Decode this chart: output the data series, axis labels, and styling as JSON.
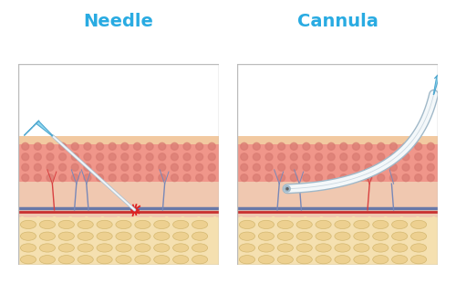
{
  "title_needle": "Needle",
  "title_cannula": "Cannula",
  "title_color": "#29ABE2",
  "title_fontsize": 14,
  "bg_color": "#FFFFFF",
  "panel_border": "#BBBBBB",
  "epidermis_color": "#F2C9A0",
  "dermis_color": "#F0968A",
  "dermis_dot_color": "#D97B72",
  "subdermis_color": "#F0C8B0",
  "fat_color": "#F5E0B0",
  "fat_cell_color": "#EDD090",
  "fat_cell_edge": "#D4B870",
  "needle_white": "#F0F4F8",
  "needle_outline": "#A8C0D0",
  "cannula_white": "#F4F8FA",
  "cannula_outline": "#A0B8C8",
  "syringe_light": "#90D8F0",
  "syringe_dark": "#50A8D0",
  "syringe_white": "#E0F4FC",
  "blood_vessel_blue": "#6878A8",
  "blood_vessel_red": "#C83030",
  "capillary_blue": "#7888B8",
  "capillary_red": "#D84040",
  "burst_color": "#E02020",
  "panel_xlim": [
    0,
    10
  ],
  "panel_ylim": [
    0,
    10
  ]
}
